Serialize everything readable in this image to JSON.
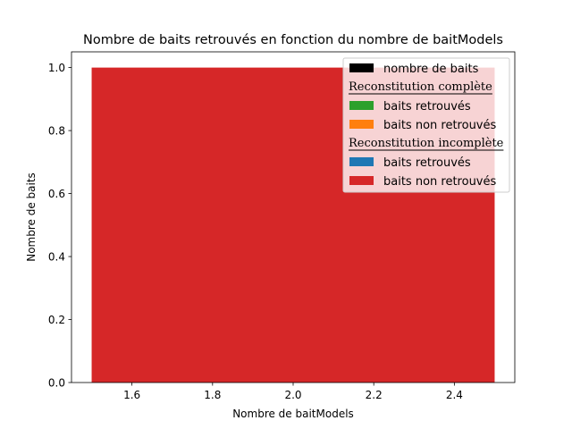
{
  "chart_data": {
    "type": "bar",
    "title": "Nombre de baits retrouvés en fonction du nombre de baitModels",
    "xlabel": "Nombre de baitModels",
    "ylabel": "Nombre de baits",
    "xlim": [
      1.45,
      2.55
    ],
    "ylim": [
      0,
      1.05
    ],
    "xticks": [
      "1.6",
      "1.8",
      "2.0",
      "2.2",
      "2.4"
    ],
    "xtick_values": [
      1.6,
      1.8,
      2.0,
      2.2,
      2.4
    ],
    "yticks": [
      "0.0",
      "0.2",
      "0.4",
      "0.6",
      "0.8",
      "1.0"
    ],
    "ytick_values": [
      0.0,
      0.2,
      0.4,
      0.6,
      0.8,
      1.0
    ],
    "grid": false,
    "legend_position": "top-right",
    "bars": [
      {
        "x": 2,
        "width": 1,
        "value": 1,
        "series": "baits non retrouvés (Reconstitution incomplète)",
        "color": "#d62728"
      }
    ],
    "legend": [
      {
        "kind": "entry",
        "label": "nombre de baits",
        "color": "#000000"
      },
      {
        "kind": "header",
        "label": "Reconstitution complète"
      },
      {
        "kind": "entry",
        "label": "baits retrouvés",
        "color": "#2ca02c"
      },
      {
        "kind": "entry",
        "label": "baits non retrouvés",
        "color": "#ff7f0e"
      },
      {
        "kind": "header",
        "label": "Reconstitution incomplète"
      },
      {
        "kind": "entry",
        "label": "baits retrouvés",
        "color": "#1f77b4"
      },
      {
        "kind": "entry",
        "label": "baits non retrouvés",
        "color": "#d62728"
      }
    ]
  }
}
